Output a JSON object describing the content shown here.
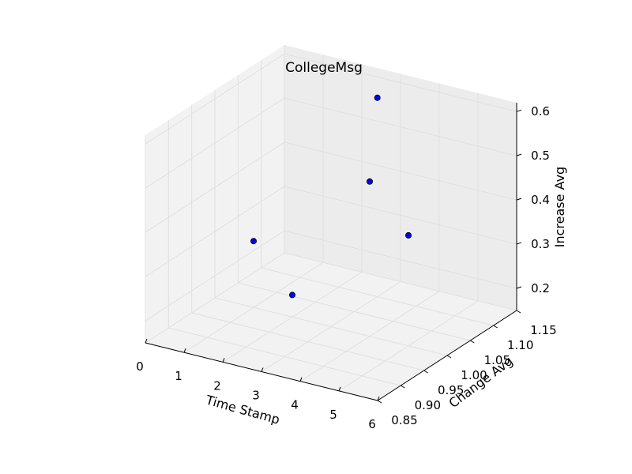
{
  "chart_data": {
    "type": "scatter",
    "projection": "3d",
    "title": "CollegeMsg",
    "xlabel": "Time Stamp",
    "ylabel": "Change Avg",
    "zlabel": "Increase Avg",
    "xlim": [
      0,
      6
    ],
    "ylim": [
      0.85,
      1.15
    ],
    "zlim": [
      0.15,
      0.62
    ],
    "xticks": [
      "0",
      "1",
      "2",
      "3",
      "4",
      "5",
      "6"
    ],
    "yticks": [
      "0.85",
      "0.90",
      "0.95",
      "1.00",
      "1.05",
      "1.10",
      "1.15"
    ],
    "zticks": [
      "0.2",
      "0.3",
      "0.4",
      "0.5",
      "0.6"
    ],
    "grid": true,
    "marker_color": "#0000ff",
    "points": [
      {
        "x": 1,
        "y": 1.0,
        "z": 0.3
      },
      {
        "x": 2,
        "y": 1.0,
        "z": 0.2
      },
      {
        "x": 3,
        "y": 1.1,
        "z": 0.6
      },
      {
        "x": 4,
        "y": 1.0,
        "z": 0.5
      },
      {
        "x": 5,
        "y": 1.0,
        "z": 0.4
      }
    ]
  }
}
